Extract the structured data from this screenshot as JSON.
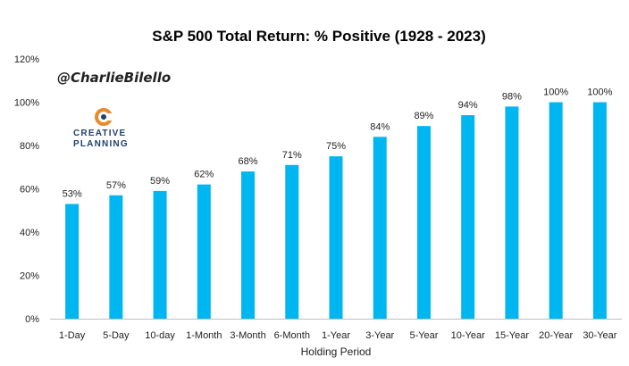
{
  "chart_data": {
    "type": "bar",
    "title": "S&P 500 Total Return: % Positive (1928 - 2023)",
    "xlabel": "Holding Period",
    "ylabel": "",
    "categories": [
      "1-Day",
      "5-Day",
      "10-day",
      "1-Month",
      "3-Month",
      "6-Month",
      "1-Year",
      "3-Year",
      "5-Year",
      "10-Year",
      "15-Year",
      "20-Year",
      "30-Year"
    ],
    "values": [
      53,
      57,
      59,
      62,
      68,
      71,
      75,
      84,
      89,
      94,
      98,
      100,
      100
    ],
    "value_labels": [
      "53%",
      "57%",
      "59%",
      "62%",
      "68%",
      "71%",
      "75%",
      "84%",
      "89%",
      "94%",
      "98%",
      "100%",
      "100%"
    ],
    "ylim": [
      0,
      120
    ],
    "yticks": [
      0,
      20,
      40,
      60,
      80,
      100,
      120
    ],
    "ytick_labels": [
      "0%",
      "20%",
      "40%",
      "60%",
      "80%",
      "100%",
      "120%"
    ],
    "grid": false,
    "legend": "none",
    "bar_color": "#00B6F0"
  },
  "watermark": {
    "handle": "@CharlieBilello",
    "logo_line1": "CREATIVE",
    "logo_line2": "PLANNING"
  },
  "colors": {
    "axis": "#bfbfbf",
    "logo_orange": "#e98a2b",
    "logo_navy": "#1f3f6e"
  }
}
